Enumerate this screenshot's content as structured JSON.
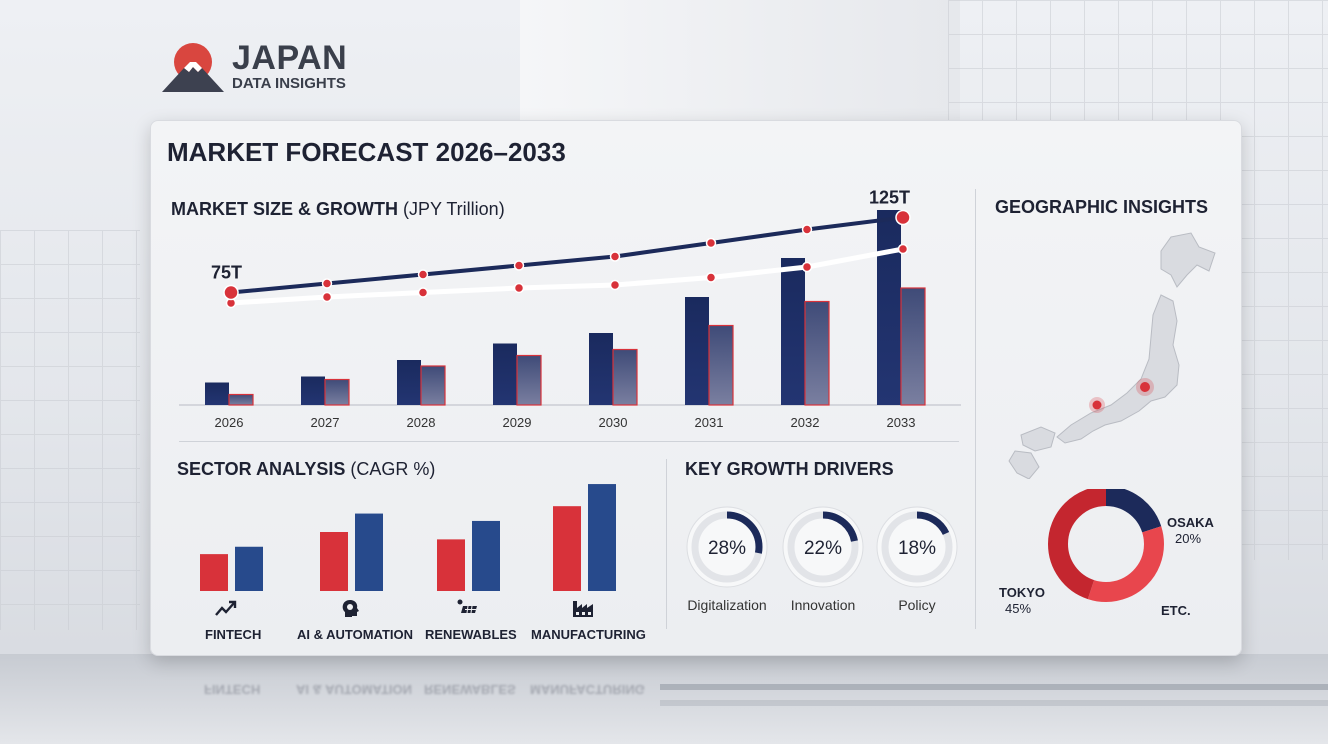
{
  "logo": {
    "line1": "JAPAN",
    "line2": "DATA INSIGHTS"
  },
  "title": "MARKET FORECAST 2026–2033",
  "market": {
    "title_bold": "MARKET SIZE & GROWTH",
    "title_light": " (JPY Trillion)",
    "start_label": "75T",
    "end_label": "125T"
  },
  "chart_data": [
    {
      "type": "bar",
      "title": "MARKET SIZE & GROWTH (JPY Trillion)",
      "categories": [
        "2026",
        "2027",
        "2028",
        "2029",
        "2030",
        "2031",
        "2032",
        "2033"
      ],
      "series": [
        {
          "name": "Market size (bar, navy)",
          "values": [
            15,
            19,
            30,
            41,
            48,
            72,
            98,
            130
          ]
        },
        {
          "name": "Secondary (bar, red)",
          "values": [
            7,
            17,
            26,
            33,
            37,
            53,
            69,
            78
          ]
        },
        {
          "name": "Trend line (navy)",
          "values": [
            75,
            81,
            87,
            93,
            99,
            108,
            117,
            125
          ]
        },
        {
          "name": "Trend line (white)",
          "values": [
            68,
            72,
            75,
            78,
            80,
            85,
            92,
            104
          ]
        }
      ],
      "annotations": [
        "75T",
        "125T"
      ],
      "ylim": [
        0,
        140
      ]
    },
    {
      "type": "bar",
      "title": "SECTOR ANALYSIS (CAGR %)",
      "categories": [
        "FINTECH",
        "AI & AUTOMATION",
        "RENEWABLES",
        "MANUFACTURING"
      ],
      "series": [
        {
          "name": "Red",
          "values": [
            5,
            8,
            7,
            11.5
          ]
        },
        {
          "name": "Blue",
          "values": [
            6,
            10.5,
            9.5,
            14.5
          ]
        }
      ],
      "ylim": [
        0,
        16
      ]
    },
    {
      "type": "pie",
      "title": "KEY GROWTH DRIVERS",
      "labels": [
        "Digitalization",
        "Innovation",
        "Policy"
      ],
      "values": [
        28,
        22,
        18
      ]
    },
    {
      "type": "pie",
      "title": "GEOGRAPHIC INSIGHTS",
      "labels": [
        "OSAKA",
        "TOKYO",
        "ETC."
      ],
      "values": [
        20,
        45,
        35
      ]
    }
  ],
  "sector": {
    "title_bold": "SECTOR ANALYSIS",
    "title_light": " (CAGR %)"
  },
  "drivers": {
    "title": "KEY GROWTH DRIVERS",
    "items": [
      {
        "value_text": "28%",
        "label": "Digitalization"
      },
      {
        "value_text": "22%",
        "label": "Innovation"
      },
      {
        "value_text": "18%",
        "label": "Policy"
      }
    ]
  },
  "geo": {
    "title": "GEOGRAPHIC INSIGHTS",
    "osaka_name": "OSAKA",
    "osaka_value": "20%",
    "tokyo_name": "TOKYO",
    "tokyo_value": "45%",
    "etc_name": "ETC."
  },
  "colors": {
    "navy": "#1c2a5a",
    "red": "#d8323a",
    "blue": "#274a8c",
    "ring_bg": "#e2e4e8"
  }
}
